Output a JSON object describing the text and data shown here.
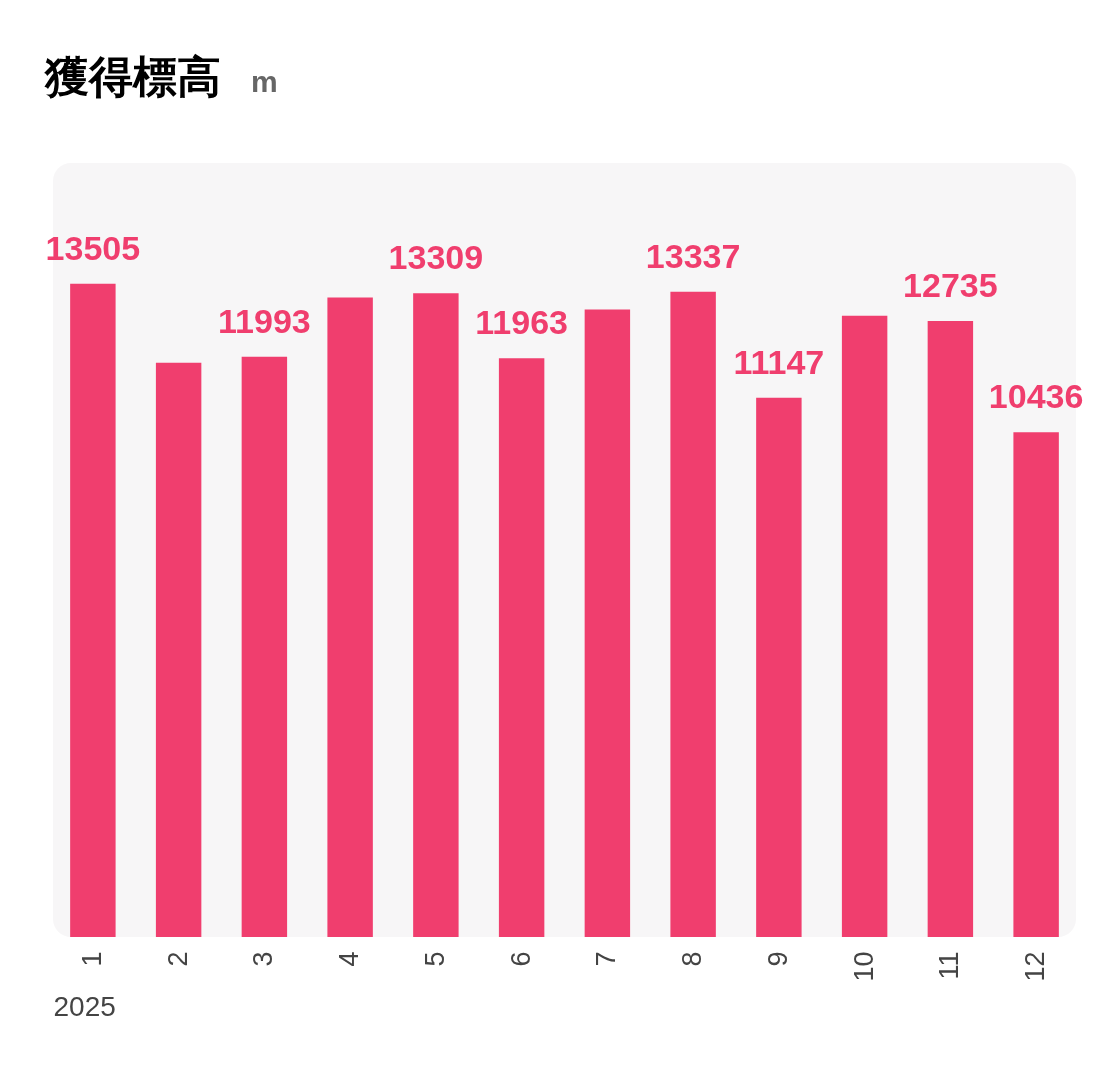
{
  "chart_data": {
    "type": "bar",
    "title": "獲得標高",
    "subtitle": "m",
    "xlabel": "2025",
    "categories": [
      "1",
      "2",
      "3",
      "4",
      "5",
      "6",
      "7",
      "8",
      "9",
      "10",
      "11",
      "12"
    ],
    "values": [
      13505,
      11870,
      11993,
      13220,
      13309,
      11963,
      12970,
      13337,
      11147,
      12840,
      12735,
      10436
    ],
    "value_labels": [
      "13505",
      null,
      "11993",
      null,
      "13309",
      "11963",
      null,
      "13337",
      "11147",
      null,
      "12735",
      "10436"
    ],
    "color": "#f03e6e",
    "ylim": [
      0,
      16000
    ],
    "tick_labels": "x"
  }
}
